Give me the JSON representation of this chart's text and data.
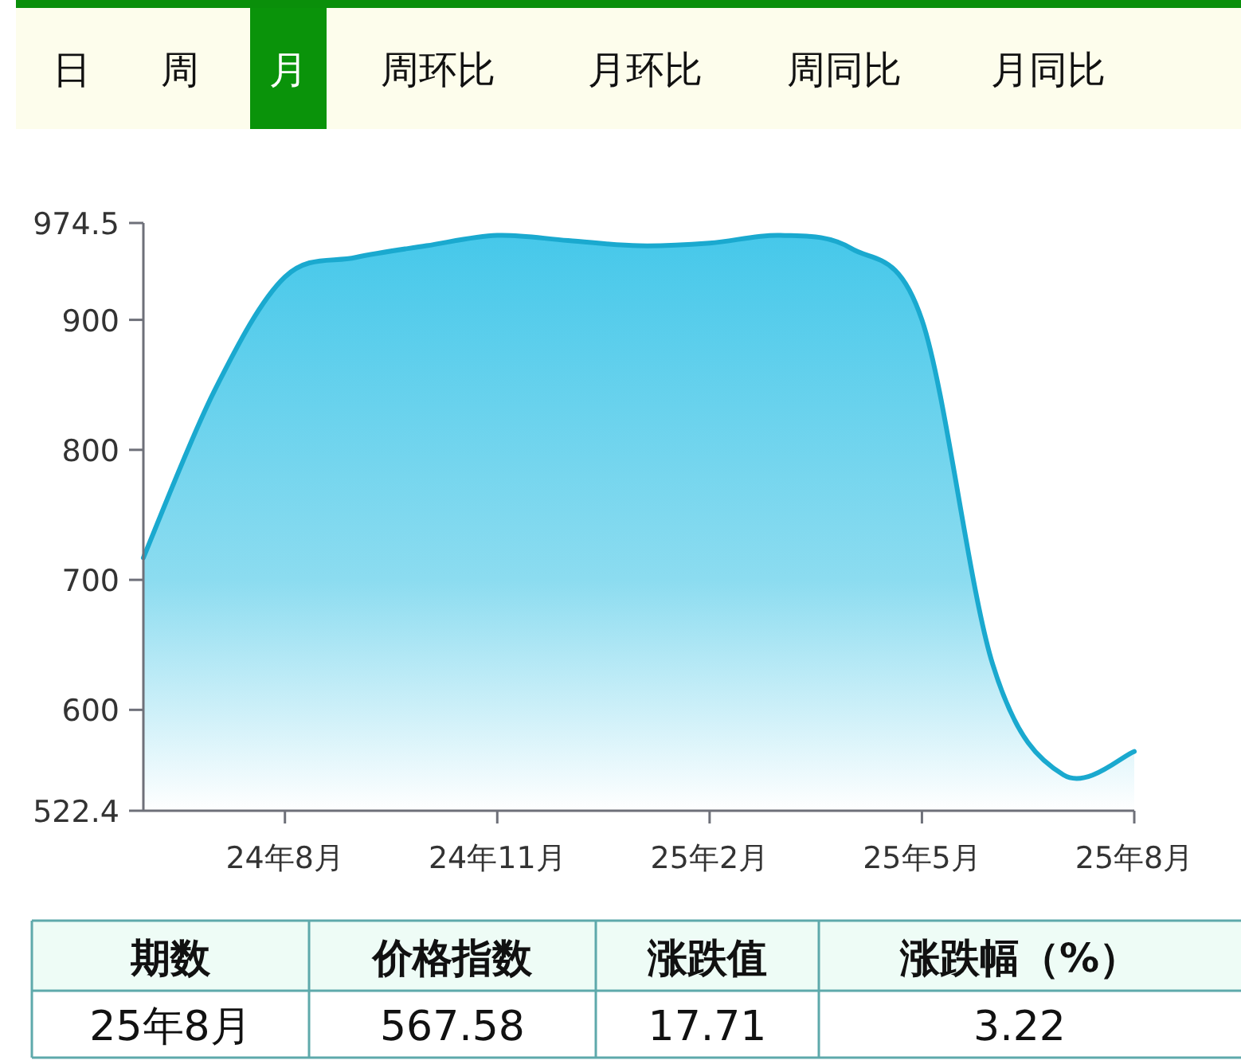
{
  "chart_data": {
    "type": "area",
    "categories": [
      null,
      null,
      "24年8月",
      null,
      null,
      "24年11月",
      null,
      null,
      "25年2月",
      null,
      null,
      "25年5月",
      null,
      null,
      "25年8月"
    ],
    "values": [
      717,
      845,
      933,
      948,
      957,
      965,
      961,
      957,
      959,
      965,
      955,
      900,
      635,
      550,
      568
    ],
    "color": "#1aa9cf",
    "ylim": [
      522.4,
      974.5
    ],
    "yticks": [
      522.4,
      600,
      700,
      800,
      900,
      974.5
    ],
    "grid": false,
    "annotations": [
      "日",
      "周",
      "月",
      "周环比",
      "月环比",
      "周同比",
      "月同比",
      "期数",
      "价格指数",
      "涨跌值",
      "涨跌幅（%）",
      "25年8月",
      "567.58",
      "17.71",
      "3.22"
    ]
  }
}
